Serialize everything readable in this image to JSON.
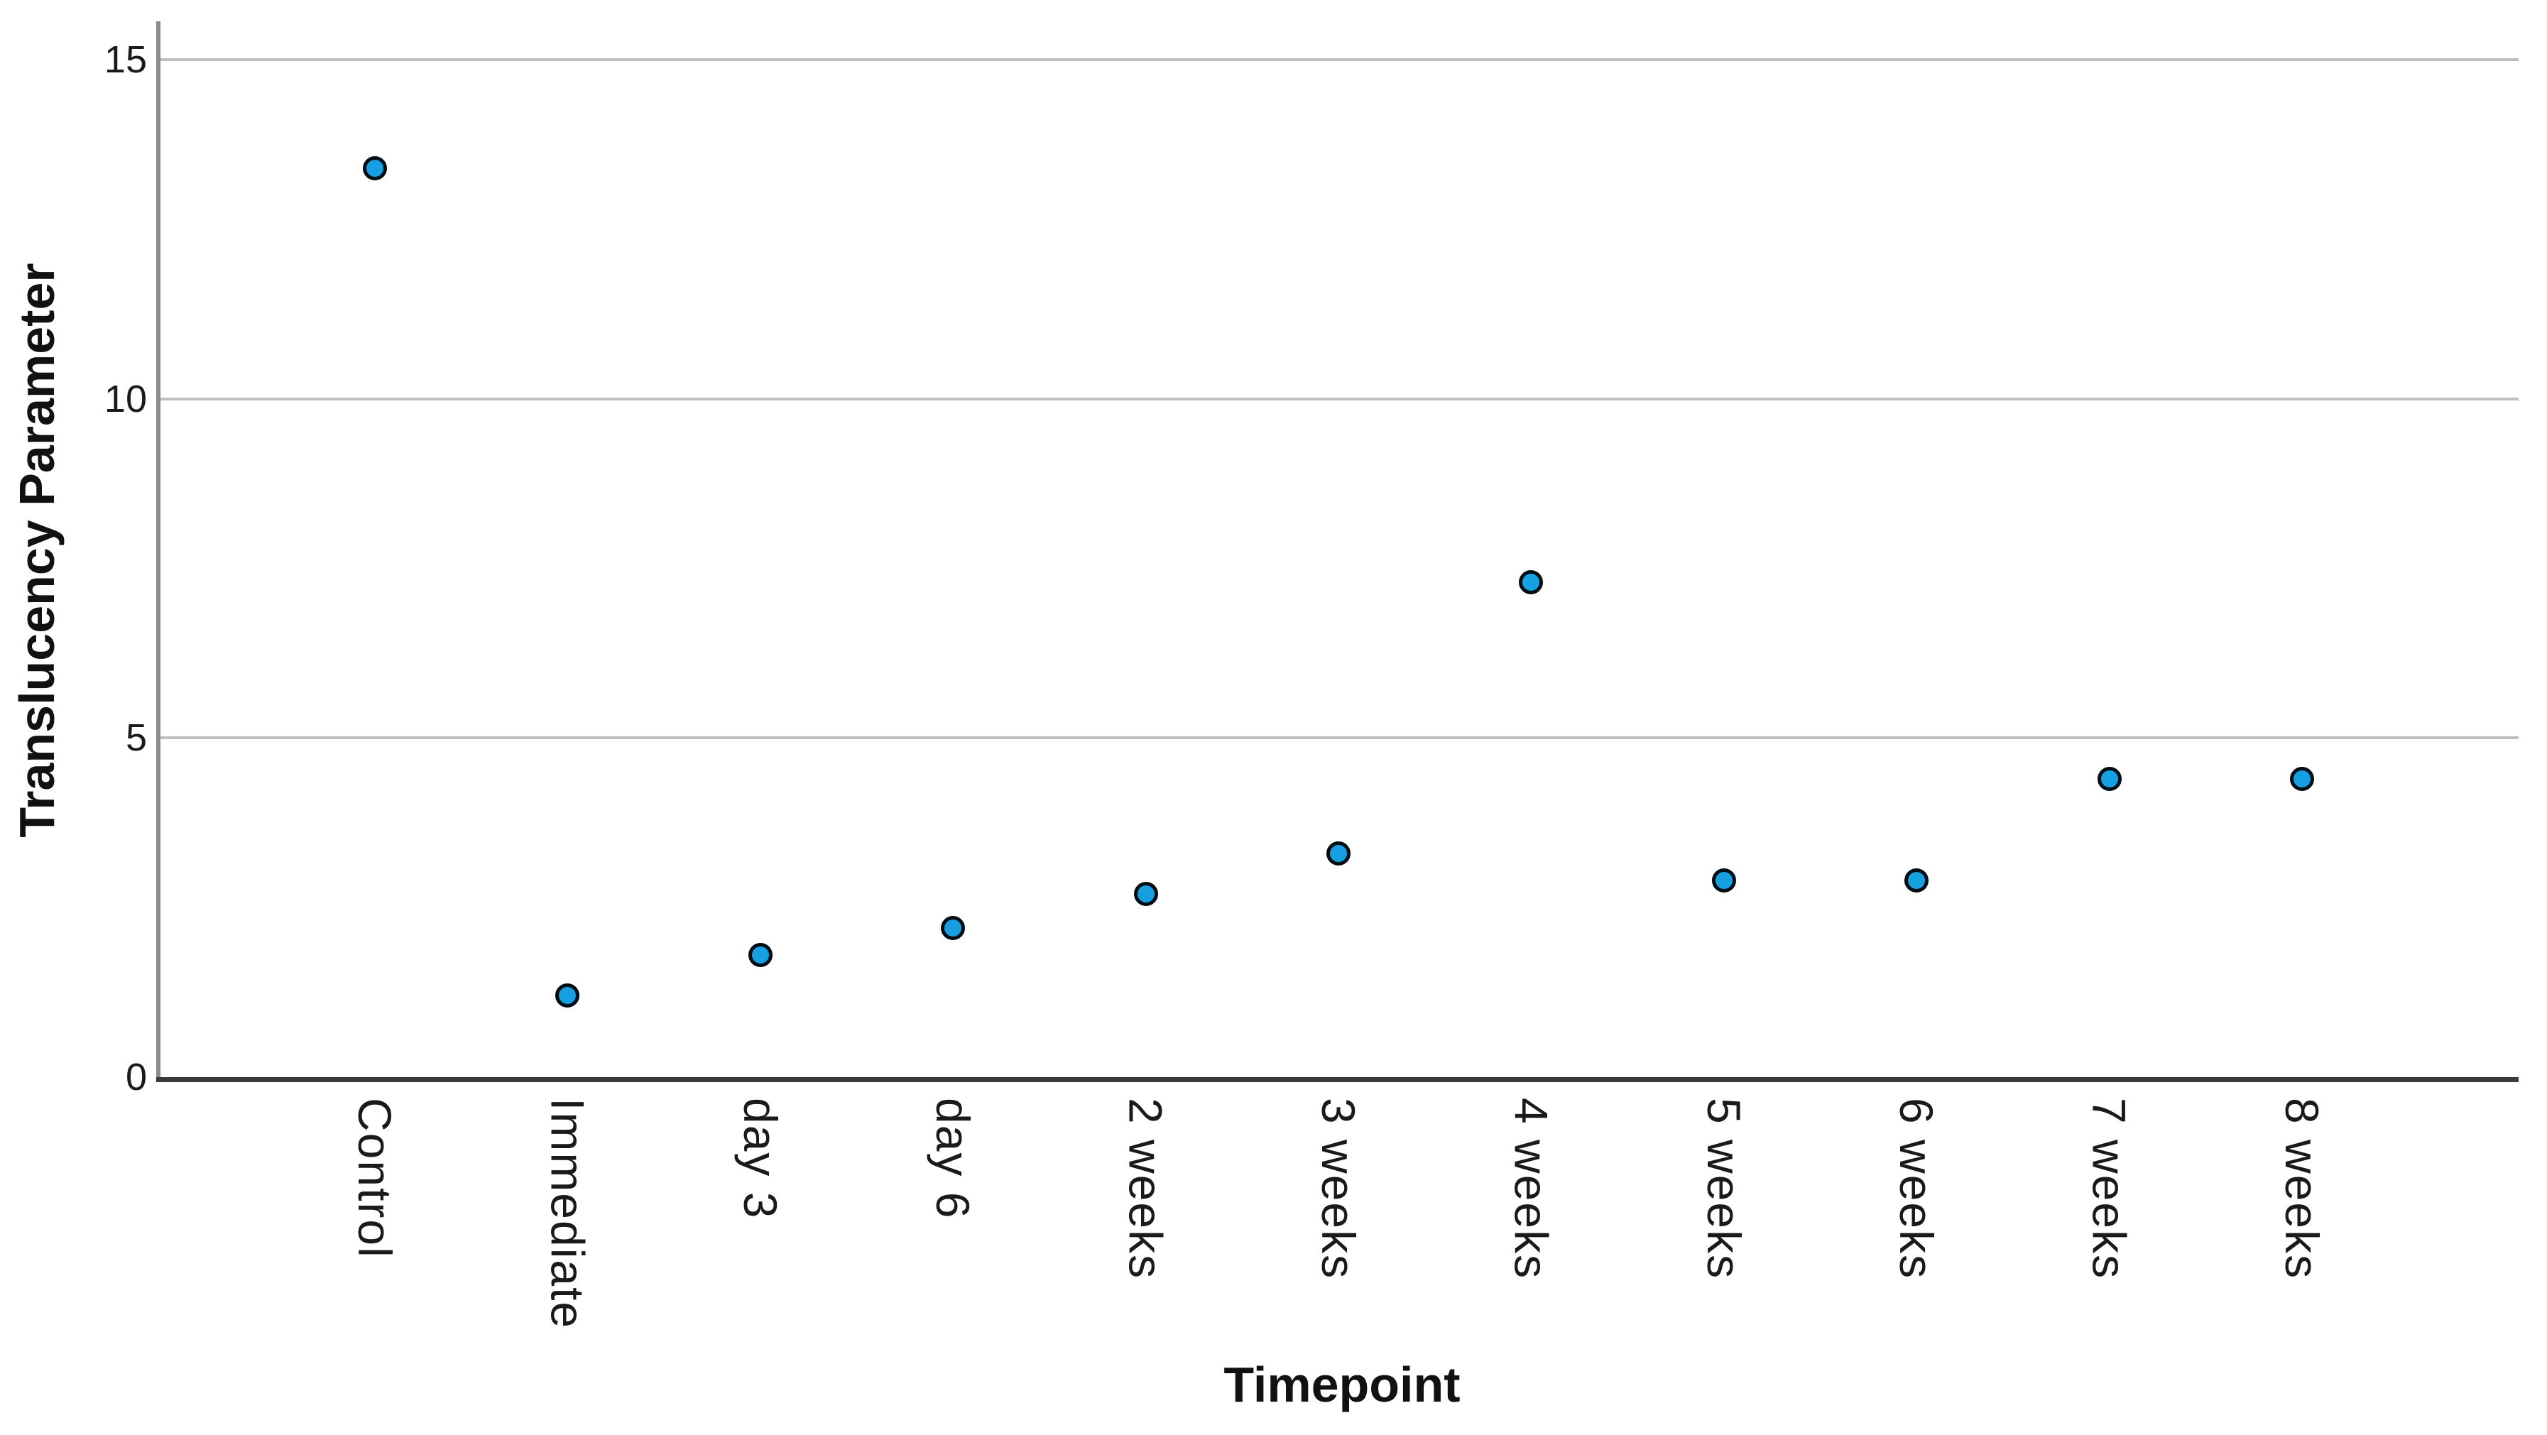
{
  "figure": {
    "background": "#ffffff",
    "text_color": "#1a1a1a"
  },
  "chart_data": {
    "type": "scatter",
    "title": "",
    "xlabel": "Timepoint",
    "ylabel": "Translucency Parameter",
    "categories": [
      "Control",
      "Immediate",
      "day 3",
      "day 6",
      "2 weeks",
      "3 weeks",
      "4 weeks",
      "5 weeks",
      "6 weeks",
      "7 weeks",
      "8 weeks"
    ],
    "values": [
      13.4,
      1.2,
      1.8,
      2.2,
      2.7,
      3.3,
      7.3,
      2.9,
      2.9,
      4.4,
      4.4
    ],
    "ylim": [
      0,
      15.5
    ],
    "yticks": [
      0,
      5,
      10,
      15
    ],
    "ytick_labels": [
      "0",
      "5",
      "10",
      "15"
    ],
    "gridline_values": [
      5,
      10,
      15
    ],
    "grid": true,
    "legend_position": "none",
    "marker": {
      "shape": "circle",
      "fill": "#16A0E2",
      "stroke": "#000d14"
    },
    "colors": {
      "gridline": "#bfbfbf",
      "y_axis_line": "#8c8c8c",
      "x_axis_line": "#3a3a3a"
    }
  }
}
